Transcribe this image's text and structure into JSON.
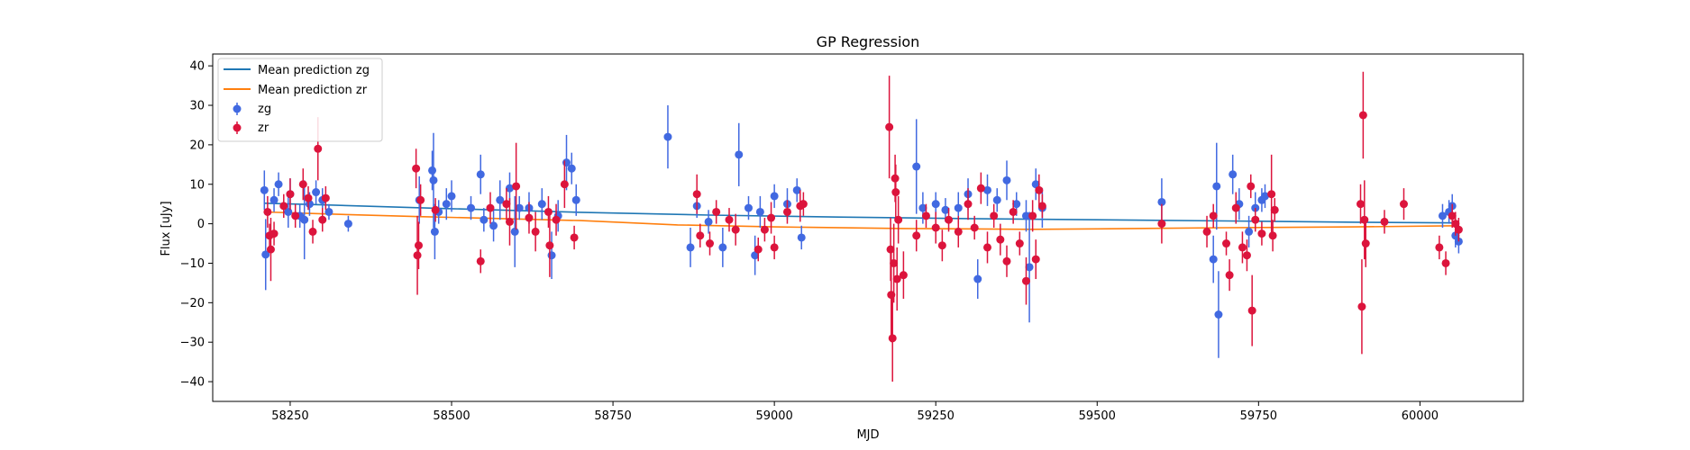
{
  "chart_data": {
    "type": "scatter",
    "title": "GP Regression",
    "xlabel": "MJD",
    "ylabel": "Flux [uJy]",
    "xlim": [
      58130,
      60160
    ],
    "ylim": [
      -45,
      43
    ],
    "xticks": [
      58250,
      58500,
      58750,
      59000,
      59250,
      59500,
      59750,
      60000
    ],
    "yticks": [
      -40,
      -30,
      -20,
      -10,
      0,
      10,
      20,
      30,
      40
    ],
    "grid": false,
    "legend_position": "top-left",
    "series": [
      {
        "name": "Mean prediction zg",
        "kind": "line",
        "color": "#1f77b4",
        "x": [
          58210,
          58300,
          58500,
          58700,
          58900,
          59100,
          59300,
          59500,
          59700,
          59900,
          60060
        ],
        "y": [
          5.2,
          4.8,
          3.8,
          2.9,
          2.2,
          1.7,
          1.3,
          1.0,
          0.7,
          0.4,
          0.2
        ]
      },
      {
        "name": "Mean prediction zr",
        "kind": "line",
        "color": "#ff7f0e",
        "x": [
          58210,
          58300,
          58450,
          58600,
          58700,
          58850,
          59000,
          59200,
          59400,
          59500,
          59700,
          59900,
          60060
        ],
        "y": [
          3.0,
          2.5,
          1.8,
          1.2,
          0.8,
          -0.3,
          -0.8,
          -1.2,
          -1.4,
          -1.3,
          -1.0,
          -0.8,
          -0.5
        ]
      },
      {
        "name": "zg",
        "kind": "errorbar",
        "color": "#4169e1",
        "points": [
          {
            "x": 58210,
            "y": 8.5,
            "e": 5
          },
          {
            "x": 58212,
            "y": -7.8,
            "e": 9
          },
          {
            "x": 58225,
            "y": 6.0,
            "e": 3
          },
          {
            "x": 58232,
            "y": 10.0,
            "e": 3
          },
          {
            "x": 58247,
            "y": 3.0,
            "e": 4
          },
          {
            "x": 58250,
            "y": 7.5,
            "e": 4
          },
          {
            "x": 58265,
            "y": 2.0,
            "e": 3
          },
          {
            "x": 58272,
            "y": 1.0,
            "e": 10
          },
          {
            "x": 58280,
            "y": 5.0,
            "e": 3
          },
          {
            "x": 58290,
            "y": 8.0,
            "e": 3
          },
          {
            "x": 58300,
            "y": 6.0,
            "e": 3
          },
          {
            "x": 58310,
            "y": 3.0,
            "e": 2
          },
          {
            "x": 58340,
            "y": 0.0,
            "e": 2
          },
          {
            "x": 58450,
            "y": 6.0,
            "e": 6
          },
          {
            "x": 58470,
            "y": 13.5,
            "e": 5
          },
          {
            "x": 58472,
            "y": 11.0,
            "e": 12
          },
          {
            "x": 58474,
            "y": -2.0,
            "e": 7
          },
          {
            "x": 58480,
            "y": 3.0,
            "e": 3
          },
          {
            "x": 58492,
            "y": 5.0,
            "e": 4
          },
          {
            "x": 58500,
            "y": 7.0,
            "e": 4
          },
          {
            "x": 58530,
            "y": 4.0,
            "e": 3
          },
          {
            "x": 58545,
            "y": 12.5,
            "e": 5
          },
          {
            "x": 58550,
            "y": 1.0,
            "e": 3
          },
          {
            "x": 58565,
            "y": -0.5,
            "e": 4
          },
          {
            "x": 58575,
            "y": 6.0,
            "e": 5
          },
          {
            "x": 58590,
            "y": 9.0,
            "e": 4
          },
          {
            "x": 58598,
            "y": -2.0,
            "e": 9
          },
          {
            "x": 58605,
            "y": 4.0,
            "e": 3
          },
          {
            "x": 58620,
            "y": 4.0,
            "e": 4
          },
          {
            "x": 58640,
            "y": 5.0,
            "e": 4
          },
          {
            "x": 58655,
            "y": -8.0,
            "e": 6
          },
          {
            "x": 58665,
            "y": 2.0,
            "e": 4
          },
          {
            "x": 58678,
            "y": 15.5,
            "e": 7
          },
          {
            "x": 58686,
            "y": 14.0,
            "e": 4
          },
          {
            "x": 58693,
            "y": 6.0,
            "e": 4
          },
          {
            "x": 58835,
            "y": 22.0,
            "e": 8
          },
          {
            "x": 58870,
            "y": -6.0,
            "e": 5
          },
          {
            "x": 58880,
            "y": 4.5,
            "e": 3
          },
          {
            "x": 58898,
            "y": 0.5,
            "e": 3
          },
          {
            "x": 58920,
            "y": -6.0,
            "e": 5
          },
          {
            "x": 58945,
            "y": 17.5,
            "e": 8
          },
          {
            "x": 58960,
            "y": 4.0,
            "e": 3
          },
          {
            "x": 58970,
            "y": -8.0,
            "e": 5
          },
          {
            "x": 58978,
            "y": 3.0,
            "e": 4
          },
          {
            "x": 59000,
            "y": 7.0,
            "e": 3
          },
          {
            "x": 59020,
            "y": 5.0,
            "e": 4
          },
          {
            "x": 59035,
            "y": 8.5,
            "e": 3
          },
          {
            "x": 59042,
            "y": -3.5,
            "e": 3
          },
          {
            "x": 59220,
            "y": 14.5,
            "e": 12
          },
          {
            "x": 59230,
            "y": 4.0,
            "e": 4
          },
          {
            "x": 59250,
            "y": 5.0,
            "e": 3
          },
          {
            "x": 59265,
            "y": 3.5,
            "e": 3
          },
          {
            "x": 59285,
            "y": 4.0,
            "e": 4
          },
          {
            "x": 59300,
            "y": 7.5,
            "e": 4
          },
          {
            "x": 59315,
            "y": -14.0,
            "e": 5
          },
          {
            "x": 59330,
            "y": 8.5,
            "e": 4
          },
          {
            "x": 59345,
            "y": 6.0,
            "e": 3
          },
          {
            "x": 59360,
            "y": 11.0,
            "e": 5
          },
          {
            "x": 59375,
            "y": 5.0,
            "e": 3
          },
          {
            "x": 59390,
            "y": 2.0,
            "e": 4
          },
          {
            "x": 59395,
            "y": -11.0,
            "e": 14
          },
          {
            "x": 59405,
            "y": 10.0,
            "e": 4
          },
          {
            "x": 59415,
            "y": 4.0,
            "e": 5
          },
          {
            "x": 59600,
            "y": 5.5,
            "e": 6
          },
          {
            "x": 59680,
            "y": -9.0,
            "e": 6
          },
          {
            "x": 59685,
            "y": 9.5,
            "e": 11
          },
          {
            "x": 59688,
            "y": -23.0,
            "e": 11
          },
          {
            "x": 59710,
            "y": 12.5,
            "e": 5
          },
          {
            "x": 59720,
            "y": 5.0,
            "e": 4
          },
          {
            "x": 59735,
            "y": -2.0,
            "e": 4
          },
          {
            "x": 59745,
            "y": 4.0,
            "e": 4
          },
          {
            "x": 59755,
            "y": 6.0,
            "e": 3
          },
          {
            "x": 59760,
            "y": 7.0,
            "e": 3
          },
          {
            "x": 60035,
            "y": 2.0,
            "e": 3
          },
          {
            "x": 60045,
            "y": 3.0,
            "e": 3
          },
          {
            "x": 60050,
            "y": 4.5,
            "e": 3
          },
          {
            "x": 60055,
            "y": -3.0,
            "e": 3
          },
          {
            "x": 60060,
            "y": -4.5,
            "e": 3
          }
        ]
      },
      {
        "name": "zr",
        "kind": "errorbar",
        "color": "#dc143c",
        "points": [
          {
            "x": 58215,
            "y": 3.0,
            "e": 4
          },
          {
            "x": 58218,
            "y": -3.0,
            "e": 3
          },
          {
            "x": 58220,
            "y": -6.5,
            "e": 8
          },
          {
            "x": 58225,
            "y": -2.5,
            "e": 3
          },
          {
            "x": 58240,
            "y": 4.5,
            "e": 3
          },
          {
            "x": 58250,
            "y": 7.5,
            "e": 4
          },
          {
            "x": 58258,
            "y": 2.0,
            "e": 3
          },
          {
            "x": 58270,
            "y": 10.0,
            "e": 4
          },
          {
            "x": 58278,
            "y": 6.5,
            "e": 3
          },
          {
            "x": 58285,
            "y": -2.0,
            "e": 3
          },
          {
            "x": 58293,
            "y": 19.0,
            "e": 8
          },
          {
            "x": 58300,
            "y": 1.0,
            "e": 3
          },
          {
            "x": 58305,
            "y": 6.5,
            "e": 3
          },
          {
            "x": 58445,
            "y": 14.0,
            "e": 5
          },
          {
            "x": 58447,
            "y": -8.0,
            "e": 10
          },
          {
            "x": 58449,
            "y": -5.5,
            "e": 6
          },
          {
            "x": 58452,
            "y": 6.0,
            "e": 4
          },
          {
            "x": 58475,
            "y": 3.5,
            "e": 3
          },
          {
            "x": 58545,
            "y": -9.5,
            "e": 3
          },
          {
            "x": 58560,
            "y": 4.0,
            "e": 4
          },
          {
            "x": 58585,
            "y": 5.0,
            "e": 4
          },
          {
            "x": 58590,
            "y": 0.5,
            "e": 6
          },
          {
            "x": 58600,
            "y": 9.5,
            "e": 11
          },
          {
            "x": 58620,
            "y": 1.5,
            "e": 4
          },
          {
            "x": 58630,
            "y": -2.0,
            "e": 5
          },
          {
            "x": 58650,
            "y": 3.0,
            "e": 4
          },
          {
            "x": 58652,
            "y": -5.5,
            "e": 8
          },
          {
            "x": 58662,
            "y": 1.0,
            "e": 4
          },
          {
            "x": 58675,
            "y": 10.0,
            "e": 6
          },
          {
            "x": 58690,
            "y": -3.5,
            "e": 3
          },
          {
            "x": 58880,
            "y": 7.5,
            "e": 5
          },
          {
            "x": 58885,
            "y": -3.0,
            "e": 3
          },
          {
            "x": 58900,
            "y": -5.0,
            "e": 3
          },
          {
            "x": 58910,
            "y": 3.0,
            "e": 3
          },
          {
            "x": 58930,
            "y": 1.0,
            "e": 3
          },
          {
            "x": 58940,
            "y": -1.5,
            "e": 4
          },
          {
            "x": 58975,
            "y": -6.5,
            "e": 3
          },
          {
            "x": 58985,
            "y": -1.5,
            "e": 3
          },
          {
            "x": 58995,
            "y": 1.5,
            "e": 4
          },
          {
            "x": 59000,
            "y": -6.0,
            "e": 3
          },
          {
            "x": 59020,
            "y": 3.0,
            "e": 3
          },
          {
            "x": 59040,
            "y": 4.5,
            "e": 4
          },
          {
            "x": 59045,
            "y": 5.0,
            "e": 3
          },
          {
            "x": 59178,
            "y": 24.5,
            "e": 13
          },
          {
            "x": 59180,
            "y": -6.5,
            "e": 8
          },
          {
            "x": 59181,
            "y": -18.0,
            "e": 12
          },
          {
            "x": 59183,
            "y": -29.0,
            "e": 11
          },
          {
            "x": 59185,
            "y": -10.0,
            "e": 10
          },
          {
            "x": 59187,
            "y": 11.5,
            "e": 6
          },
          {
            "x": 59188,
            "y": 8.0,
            "e": 7
          },
          {
            "x": 59190,
            "y": -14.0,
            "e": 8
          },
          {
            "x": 59192,
            "y": 1.0,
            "e": 6
          },
          {
            "x": 59200,
            "y": -13.0,
            "e": 6
          },
          {
            "x": 59220,
            "y": -3.0,
            "e": 4
          },
          {
            "x": 59235,
            "y": 2.0,
            "e": 3
          },
          {
            "x": 59250,
            "y": -1.0,
            "e": 4
          },
          {
            "x": 59260,
            "y": -5.5,
            "e": 4
          },
          {
            "x": 59270,
            "y": 1.0,
            "e": 3
          },
          {
            "x": 59285,
            "y": -2.0,
            "e": 4
          },
          {
            "x": 59300,
            "y": 5.0,
            "e": 4
          },
          {
            "x": 59310,
            "y": -1.0,
            "e": 3
          },
          {
            "x": 59320,
            "y": 9.0,
            "e": 4
          },
          {
            "x": 59330,
            "y": -6.0,
            "e": 4
          },
          {
            "x": 59340,
            "y": 2.0,
            "e": 3
          },
          {
            "x": 59350,
            "y": -4.0,
            "e": 4
          },
          {
            "x": 59360,
            "y": -9.5,
            "e": 4
          },
          {
            "x": 59370,
            "y": 3.0,
            "e": 3
          },
          {
            "x": 59380,
            "y": -5.0,
            "e": 3
          },
          {
            "x": 59390,
            "y": -14.5,
            "e": 6
          },
          {
            "x": 59400,
            "y": 2.0,
            "e": 4
          },
          {
            "x": 59405,
            "y": -9.0,
            "e": 5
          },
          {
            "x": 59410,
            "y": 8.5,
            "e": 4
          },
          {
            "x": 59415,
            "y": 4.5,
            "e": 3
          },
          {
            "x": 59600,
            "y": 0.0,
            "e": 5
          },
          {
            "x": 59670,
            "y": -2.0,
            "e": 4
          },
          {
            "x": 59680,
            "y": 2.0,
            "e": 3
          },
          {
            "x": 59700,
            "y": -5.0,
            "e": 3
          },
          {
            "x": 59705,
            "y": -13.0,
            "e": 4
          },
          {
            "x": 59715,
            "y": 4.0,
            "e": 4
          },
          {
            "x": 59725,
            "y": -6.0,
            "e": 4
          },
          {
            "x": 59732,
            "y": -8.0,
            "e": 4
          },
          {
            "x": 59738,
            "y": 9.5,
            "e": 3
          },
          {
            "x": 59740,
            "y": -22.0,
            "e": 9
          },
          {
            "x": 59745,
            "y": 1.0,
            "e": 3
          },
          {
            "x": 59755,
            "y": -2.5,
            "e": 3
          },
          {
            "x": 59770,
            "y": 7.5,
            "e": 10
          },
          {
            "x": 59772,
            "y": -3.0,
            "e": 4
          },
          {
            "x": 59775,
            "y": 3.5,
            "e": 3
          },
          {
            "x": 59908,
            "y": 5.0,
            "e": 5
          },
          {
            "x": 59910,
            "y": -21.0,
            "e": 12
          },
          {
            "x": 59912,
            "y": 27.5,
            "e": 11
          },
          {
            "x": 59914,
            "y": 1.0,
            "e": 10
          },
          {
            "x": 59916,
            "y": -5.0,
            "e": 6
          },
          {
            "x": 59945,
            "y": 0.5,
            "e": 3
          },
          {
            "x": 59975,
            "y": 5.0,
            "e": 4
          },
          {
            "x": 60030,
            "y": -6.0,
            "e": 3
          },
          {
            "x": 60040,
            "y": -10.0,
            "e": 3
          },
          {
            "x": 60050,
            "y": 2.0,
            "e": 3
          },
          {
            "x": 60055,
            "y": 0.0,
            "e": 3
          },
          {
            "x": 60060,
            "y": -1.5,
            "e": 3
          }
        ]
      }
    ]
  }
}
